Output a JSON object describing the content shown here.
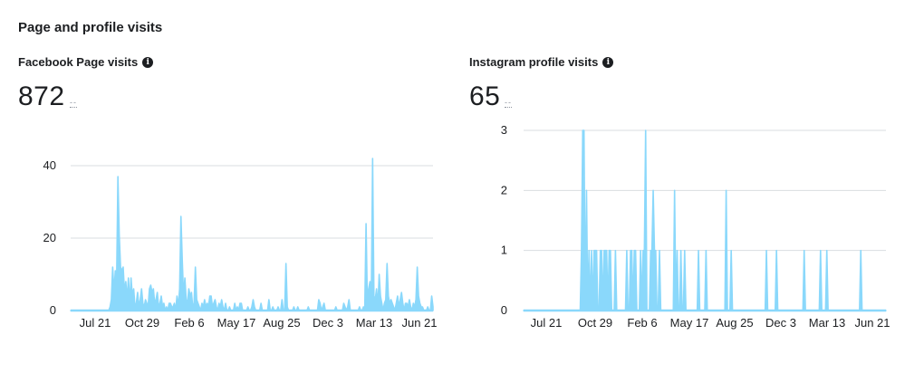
{
  "header": {
    "title": "Page and profile visits"
  },
  "chart_data": [
    {
      "type": "area",
      "title": "Facebook Page visits",
      "total": "872",
      "delta": "--",
      "color": "#8ad8fb",
      "ylim": [
        0,
        40
      ],
      "yticks": [
        0,
        20,
        40
      ],
      "grid": true,
      "xticks": [
        "Jul 21",
        "Oct 29",
        "Feb 6",
        "May 17",
        "Aug 25",
        "Dec 3",
        "Mar 13",
        "Jun 21"
      ],
      "series": [
        {
          "values": [
            0,
            0,
            0,
            0,
            0,
            0,
            0,
            0,
            0,
            0,
            0,
            0,
            0,
            0,
            0,
            0,
            0,
            0,
            0,
            0,
            0,
            0,
            0,
            0,
            0,
            0,
            0,
            0,
            0,
            0,
            1,
            3,
            12,
            5,
            11,
            8,
            37,
            21,
            12,
            11,
            12,
            5,
            8,
            3,
            9,
            2,
            9,
            4,
            6,
            1,
            2,
            5,
            1,
            3,
            6,
            2,
            1,
            3,
            2,
            1,
            6,
            7,
            5,
            6,
            2,
            3,
            5,
            1,
            2,
            4,
            1,
            2,
            0,
            1,
            0,
            2,
            2,
            1,
            1,
            2,
            0,
            4,
            1,
            6,
            26,
            14,
            4,
            9,
            3,
            2,
            6,
            4,
            5,
            1,
            2,
            12,
            3,
            2,
            1,
            0,
            2,
            1,
            3,
            1,
            2,
            1,
            4,
            4,
            1,
            2,
            3,
            1,
            0,
            2,
            1,
            3,
            1,
            0,
            2,
            0,
            0,
            1,
            0,
            0,
            0,
            2,
            0,
            1,
            0,
            2,
            2,
            0,
            0,
            0,
            0,
            1,
            0,
            0,
            1,
            3,
            1,
            0,
            0,
            0,
            0,
            2,
            0,
            0,
            0,
            0,
            0,
            3,
            0,
            0,
            1,
            0,
            0,
            0,
            1,
            0,
            0,
            3,
            0,
            0,
            13,
            1,
            0,
            0,
            0,
            0,
            1,
            0,
            0,
            1,
            0,
            0,
            0,
            0,
            0,
            0,
            0,
            1,
            0,
            0,
            0,
            0,
            0,
            0,
            0,
            3,
            2,
            0,
            1,
            2,
            0,
            0,
            0,
            0,
            0,
            0,
            0,
            0,
            1,
            0,
            0,
            0,
            0,
            0,
            2,
            1,
            0,
            1,
            3,
            0,
            0,
            0,
            0,
            0,
            0,
            0,
            1,
            0,
            0,
            1,
            0,
            24,
            2,
            6,
            8,
            3,
            42,
            4,
            3,
            6,
            1,
            10,
            4,
            2,
            0,
            2,
            3,
            13,
            4,
            2,
            3,
            2,
            1,
            0,
            2,
            4,
            1,
            3,
            5,
            2,
            0,
            2,
            2,
            1,
            3,
            1,
            0,
            2,
            1,
            3,
            12,
            4,
            2,
            1,
            1,
            0,
            0,
            0,
            1,
            0,
            0,
            4,
            1
          ]
        }
      ]
    },
    {
      "type": "area",
      "title": "Instagram profile visits",
      "total": "65",
      "delta": "--",
      "color": "#8ad8fb",
      "ylim": [
        0,
        3
      ],
      "yticks": [
        0,
        1,
        2,
        3
      ],
      "grid": true,
      "xticks": [
        "Jul 21",
        "Oct 29",
        "Feb 6",
        "May 17",
        "Aug 25",
        "Dec 3",
        "Mar 13",
        "Jun 21"
      ],
      "series": [
        {
          "values": [
            0,
            0,
            0,
            0,
            0,
            0,
            0,
            0,
            0,
            0,
            0,
            0,
            0,
            0,
            0,
            0,
            0,
            0,
            0,
            0,
            0,
            0,
            0,
            0,
            0,
            0,
            0,
            0,
            0,
            0,
            0,
            0,
            0,
            0,
            0,
            0,
            0,
            0,
            0,
            0,
            0,
            0,
            0,
            0,
            0,
            0,
            1,
            3,
            3,
            0,
            2,
            0,
            1,
            0,
            1,
            0,
            1,
            1,
            1,
            0,
            0,
            1,
            1,
            0,
            1,
            1,
            1,
            0,
            1,
            1,
            0,
            0,
            0,
            1,
            0,
            0,
            0,
            0,
            0,
            0,
            0,
            0,
            1,
            0,
            0,
            1,
            1,
            0,
            1,
            1,
            0,
            0,
            0,
            1,
            0,
            1,
            1,
            3,
            0,
            0,
            0,
            1,
            1,
            2,
            1,
            1,
            0,
            0,
            1,
            0,
            0,
            0,
            0,
            0,
            0,
            0,
            0,
            0,
            0,
            0,
            2,
            0,
            1,
            0,
            0,
            1,
            0,
            0,
            1,
            0,
            0,
            0,
            0,
            0,
            0,
            0,
            0,
            0,
            0,
            1,
            0,
            0,
            0,
            0,
            0,
            1,
            0,
            0,
            0,
            0,
            0,
            0,
            0,
            0,
            0,
            0,
            0,
            0,
            0,
            0,
            0,
            2,
            0,
            0,
            0,
            1,
            0,
            0,
            0,
            0,
            0,
            0,
            0,
            0,
            0,
            0,
            0,
            0,
            0,
            0,
            0,
            0,
            0,
            0,
            0,
            0,
            0,
            0,
            0,
            0,
            0,
            0,
            0,
            1,
            0,
            0,
            0,
            0,
            0,
            0,
            0,
            1,
            0,
            0,
            0,
            0,
            0,
            0,
            0,
            0,
            0,
            0,
            0,
            0,
            0,
            0,
            0,
            0,
            0,
            0,
            0,
            0,
            0,
            1,
            0,
            0,
            0,
            0,
            0,
            0,
            0,
            0,
            0,
            0,
            0,
            0,
            1,
            0,
            0,
            0,
            0,
            1,
            0,
            0,
            0,
            0,
            0,
            0,
            0,
            0,
            0,
            0,
            0,
            0,
            0,
            0,
            0,
            0,
            0,
            0,
            0,
            0,
            0,
            0,
            0,
            0,
            0,
            0,
            1,
            0,
            0,
            0,
            0,
            0,
            0,
            0,
            0,
            0,
            0,
            0,
            0,
            0,
            0,
            0,
            0,
            0,
            0,
            0,
            0
          ]
        }
      ]
    }
  ]
}
